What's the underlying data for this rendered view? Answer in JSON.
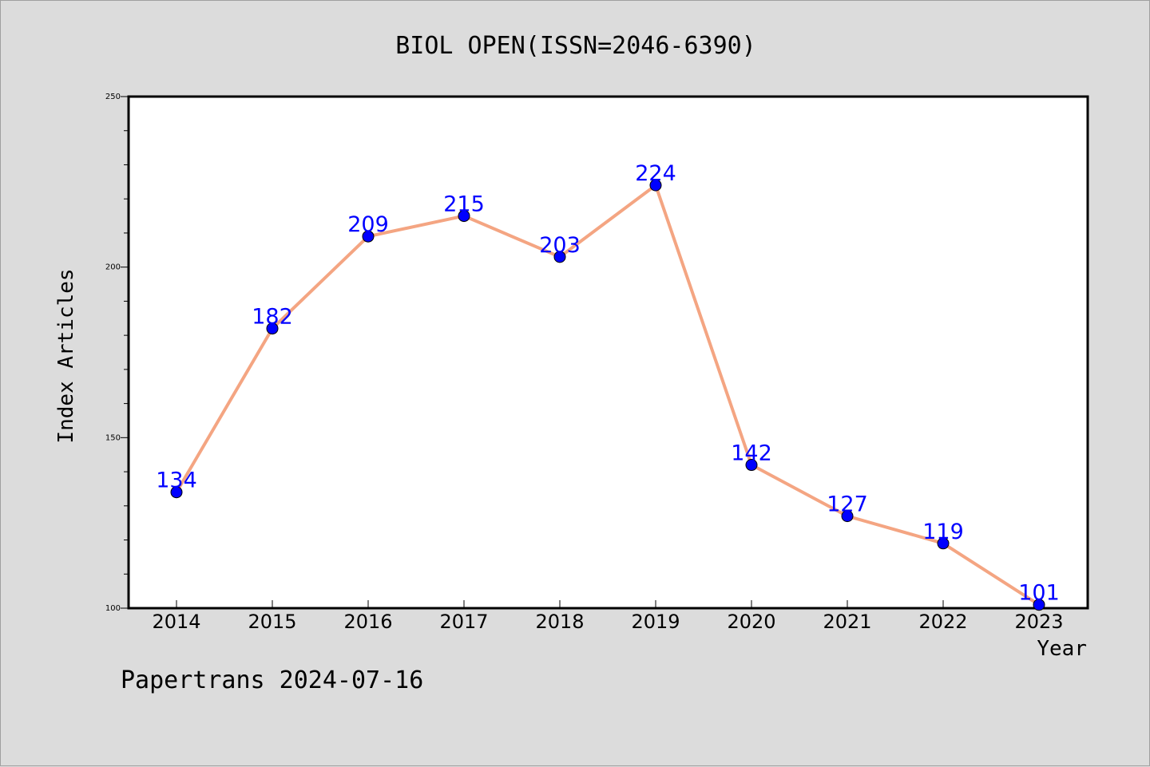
{
  "chart_data": {
    "type": "line",
    "title": "BIOL OPEN(ISSN=2046-6390)",
    "xlabel": "Year",
    "ylabel": "Index Articles",
    "categories": [
      "2014",
      "2015",
      "2016",
      "2017",
      "2018",
      "2019",
      "2020",
      "2021",
      "2022",
      "2023"
    ],
    "series": [
      {
        "values": [
          134,
          182,
          209,
          215,
          203,
          224,
          142,
          127,
          119,
          101
        ]
      }
    ],
    "ylim": [
      100,
      250
    ],
    "yticks": [
      100,
      150,
      200,
      250
    ],
    "grid": false,
    "line_color": "#f4a582",
    "marker_color": "#0000ff",
    "label_color": "#0000ff"
  },
  "footer": {
    "text": "Papertrans 2024-07-16"
  }
}
